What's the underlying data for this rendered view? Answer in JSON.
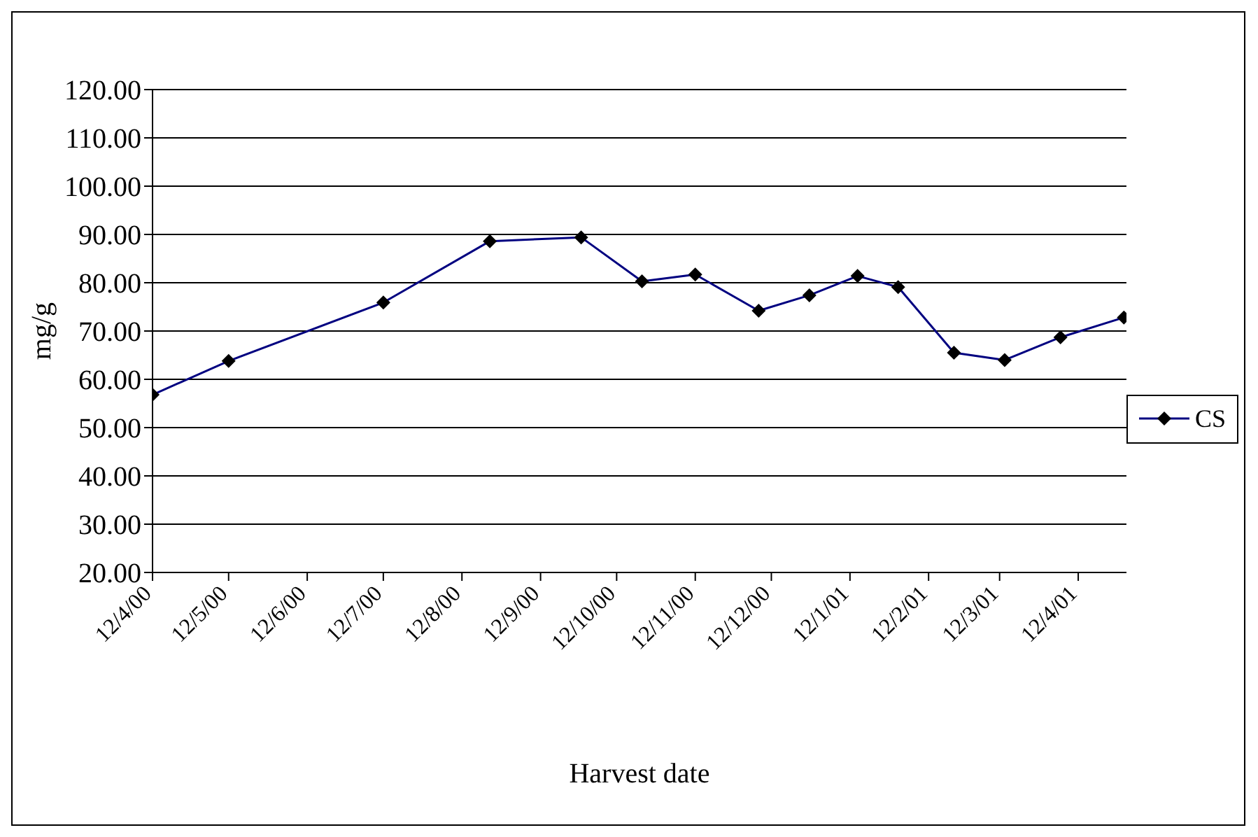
{
  "chart_data": {
    "type": "line",
    "xlabel": "Harvest date",
    "ylabel": "mg/g",
    "x": [
      "2000-04-12",
      "2000-05-12",
      "2000-07-12",
      "2000-08-23",
      "2000-09-28",
      "2000-10-22",
      "2000-11-12",
      "2000-12-07",
      "2000-12-27",
      "2001-01-15",
      "2001-01-31",
      "2001-02-22",
      "2001-03-14",
      "2001-04-05",
      "2001-04-30"
    ],
    "series": [
      {
        "name": "CS",
        "color": "#000080",
        "values": [
          56.8,
          63.8,
          75.9,
          88.6,
          89.4,
          80.3,
          81.7,
          74.2,
          77.4,
          81.4,
          79.1,
          65.5,
          64.0,
          68.7,
          72.8
        ]
      }
    ],
    "xlim": [
      "2000-04-12",
      "2001-05-01"
    ],
    "xticks": [
      {
        "value": "2000-04-12",
        "label": "12/4/00"
      },
      {
        "value": "2000-05-12",
        "label": "12/5/00"
      },
      {
        "value": "2000-06-12",
        "label": "12/6/00"
      },
      {
        "value": "2000-07-12",
        "label": "12/7/00"
      },
      {
        "value": "2000-08-12",
        "label": "12/8/00"
      },
      {
        "value": "2000-09-12",
        "label": "12/9/00"
      },
      {
        "value": "2000-10-12",
        "label": "12/10/00"
      },
      {
        "value": "2000-11-12",
        "label": "12/11/00"
      },
      {
        "value": "2000-12-12",
        "label": "12/12/00"
      },
      {
        "value": "2001-01-12",
        "label": "12/1/01"
      },
      {
        "value": "2001-02-12",
        "label": "12/2/01"
      },
      {
        "value": "2001-03-12",
        "label": "12/3/01"
      },
      {
        "value": "2001-04-12",
        "label": "12/4/01"
      }
    ],
    "ylim": [
      20,
      120
    ],
    "yticks": [
      {
        "value": 20,
        "label": "20.00"
      },
      {
        "value": 30,
        "label": "30.00"
      },
      {
        "value": 40,
        "label": "40.00"
      },
      {
        "value": 50,
        "label": "50.00"
      },
      {
        "value": 60,
        "label": "60.00"
      },
      {
        "value": 70,
        "label": "70.00"
      },
      {
        "value": 80,
        "label": "80.00"
      },
      {
        "value": 90,
        "label": "90.00"
      },
      {
        "value": 100,
        "label": "100.00"
      },
      {
        "value": 110,
        "label": "110.00"
      },
      {
        "value": 120,
        "label": "120.00"
      }
    ],
    "grid": "y",
    "legend": "right",
    "marker": "diamond",
    "line_style": "solid"
  }
}
